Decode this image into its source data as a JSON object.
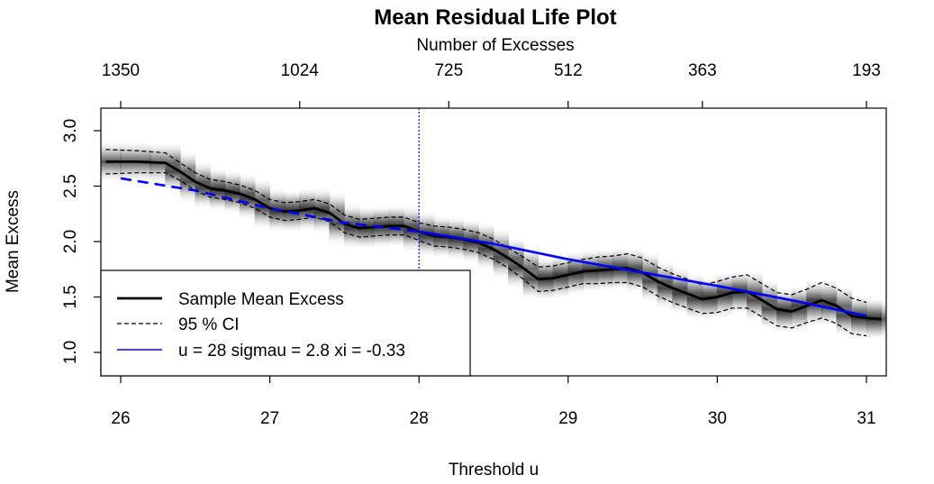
{
  "chart_data": {
    "type": "line",
    "title": "Mean Residual Life Plot",
    "xlabel": "Threshold u",
    "ylabel": "Mean Excess",
    "top_axis_label": "Number of Excesses",
    "xlim": [
      26,
      31
    ],
    "ylim": [
      0.8,
      3.2
    ],
    "x_ticks": [
      "26",
      "27",
      "28",
      "29",
      "30",
      "31"
    ],
    "y_ticks": [
      "1.0",
      "1.5",
      "2.0",
      "2.5",
      "3.0"
    ],
    "top_ticks": [
      {
        "x": 26.0,
        "label": "1350"
      },
      {
        "x": 27.2,
        "label": "1024"
      },
      {
        "x": 28.2,
        "label": "725"
      },
      {
        "x": 29.0,
        "label": "512"
      },
      {
        "x": 29.9,
        "label": "363"
      },
      {
        "x": 31.0,
        "label": "193"
      }
    ],
    "threshold_line": 28,
    "legend": {
      "position": "bottom-left",
      "entries": [
        {
          "label": "Sample Mean Excess",
          "style": "solid-thick",
          "color": "#000000"
        },
        {
          "label": "95 % CI",
          "style": "dashed",
          "color": "#000000"
        },
        {
          "label": "u =  28 sigmau = 2.8 xi = -0.33",
          "style": "solid",
          "color": "#0000ff"
        }
      ]
    },
    "series": [
      {
        "name": "Sample Mean Excess",
        "x": [
          25.9,
          26.1,
          26.3,
          26.4,
          26.5,
          26.6,
          26.7,
          26.8,
          26.9,
          27.0,
          27.1,
          27.2,
          27.3,
          27.4,
          27.5,
          27.6,
          27.7,
          27.8,
          27.9,
          28.0,
          28.1,
          28.2,
          28.3,
          28.4,
          28.5,
          28.6,
          28.7,
          28.8,
          28.9,
          29.0,
          29.1,
          29.2,
          29.3,
          29.4,
          29.5,
          29.6,
          29.7,
          29.8,
          29.9,
          30.0,
          30.1,
          30.2,
          30.3,
          30.4,
          30.5,
          30.6,
          30.7,
          30.8,
          30.9,
          31.0,
          31.1
        ],
        "y": [
          2.72,
          2.72,
          2.71,
          2.63,
          2.54,
          2.48,
          2.46,
          2.43,
          2.38,
          2.3,
          2.27,
          2.28,
          2.3,
          2.26,
          2.16,
          2.12,
          2.13,
          2.14,
          2.14,
          2.09,
          2.05,
          2.04,
          2.02,
          1.99,
          1.93,
          1.85,
          1.76,
          1.66,
          1.67,
          1.7,
          1.73,
          1.74,
          1.75,
          1.76,
          1.72,
          1.64,
          1.58,
          1.53,
          1.48,
          1.5,
          1.54,
          1.55,
          1.47,
          1.39,
          1.37,
          1.42,
          1.47,
          1.42,
          1.33,
          1.31,
          1.3
        ]
      },
      {
        "name": "95 % CI upper",
        "x": [
          25.9,
          26.1,
          26.3,
          26.4,
          26.5,
          26.6,
          26.7,
          26.8,
          26.9,
          27.0,
          27.1,
          27.2,
          27.3,
          27.4,
          27.5,
          27.6,
          27.7,
          27.8,
          27.9,
          28.0,
          28.1,
          28.2,
          28.3,
          28.4,
          28.5,
          28.6,
          28.7,
          28.8,
          28.9,
          29.0,
          29.1,
          29.2,
          29.3,
          29.4,
          29.5,
          29.6,
          29.7,
          29.8,
          29.9,
          30.0,
          30.1,
          30.2,
          30.3,
          30.4,
          30.5,
          30.6,
          30.7,
          30.8,
          30.9,
          31.0
        ],
        "y": [
          2.83,
          2.82,
          2.8,
          2.71,
          2.62,
          2.56,
          2.54,
          2.51,
          2.46,
          2.38,
          2.35,
          2.36,
          2.38,
          2.34,
          2.24,
          2.2,
          2.21,
          2.22,
          2.22,
          2.17,
          2.14,
          2.13,
          2.11,
          2.08,
          2.02,
          1.94,
          1.86,
          1.77,
          1.78,
          1.81,
          1.84,
          1.86,
          1.87,
          1.89,
          1.85,
          1.77,
          1.71,
          1.66,
          1.61,
          1.64,
          1.68,
          1.7,
          1.62,
          1.54,
          1.52,
          1.57,
          1.63,
          1.58,
          1.49,
          1.45
        ]
      },
      {
        "name": "95 % CI lower",
        "x": [
          25.9,
          26.1,
          26.3,
          26.4,
          26.5,
          26.6,
          26.7,
          26.8,
          26.9,
          27.0,
          27.1,
          27.2,
          27.3,
          27.4,
          27.5,
          27.6,
          27.7,
          27.8,
          27.9,
          28.0,
          28.1,
          28.2,
          28.3,
          28.4,
          28.5,
          28.6,
          28.7,
          28.8,
          28.9,
          29.0,
          29.1,
          29.2,
          29.3,
          29.4,
          29.5,
          29.6,
          29.7,
          29.8,
          29.9,
          30.0,
          30.1,
          30.2,
          30.3,
          30.4,
          30.5,
          30.6,
          30.7,
          30.8,
          30.9,
          31.0
        ],
        "y": [
          2.61,
          2.62,
          2.62,
          2.55,
          2.46,
          2.4,
          2.38,
          2.35,
          2.3,
          2.22,
          2.19,
          2.2,
          2.22,
          2.18,
          2.08,
          2.04,
          2.05,
          2.06,
          2.06,
          2.01,
          1.96,
          1.95,
          1.93,
          1.9,
          1.84,
          1.76,
          1.66,
          1.55,
          1.56,
          1.59,
          1.62,
          1.62,
          1.63,
          1.63,
          1.59,
          1.51,
          1.45,
          1.4,
          1.35,
          1.36,
          1.4,
          1.4,
          1.32,
          1.24,
          1.22,
          1.27,
          1.31,
          1.26,
          1.17,
          1.15
        ]
      },
      {
        "name": "u =  28 sigmau = 2.8 xi = -0.33",
        "x_dashed": [
          26.0,
          26.5,
          27.0,
          27.5,
          28.0
        ],
        "y_dashed": [
          2.57,
          2.46,
          2.3,
          2.17,
          2.09
        ],
        "x": [
          28.0,
          28.5,
          29.0,
          29.5,
          30.0,
          30.5,
          31.0
        ],
        "y": [
          2.09,
          1.98,
          1.84,
          1.72,
          1.6,
          1.47,
          1.33
        ]
      }
    ]
  }
}
